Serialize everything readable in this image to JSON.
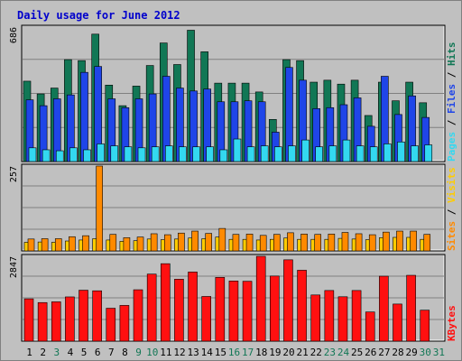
{
  "title": "Daily usage for June 2012",
  "colors": {
    "background": "#c0c0c0",
    "title": "#0000cc",
    "hits": "#117755",
    "files": "#1f45e8",
    "pages": "#33d8f0",
    "visits": "#ffcc00",
    "sites": "#ff8a00",
    "kbytes": "#ff1010"
  },
  "chart_data": [
    {
      "type": "bar",
      "title": "Daily usage for June 2012",
      "max_label": "686",
      "ylim": [
        0,
        686
      ],
      "grid": true,
      "legend": [
        "Pages",
        "Files",
        "Hits"
      ],
      "categories": [
        "1",
        "2",
        "3",
        "4",
        "5",
        "6",
        "7",
        "8",
        "9",
        "10",
        "11",
        "12",
        "13",
        "14",
        "15",
        "16",
        "17",
        "18",
        "19",
        "20",
        "21",
        "22",
        "23",
        "24",
        "25",
        "26",
        "27",
        "28",
        "29",
        "30",
        "31"
      ],
      "series": [
        {
          "name": "Hits",
          "values": [
            410,
            345,
            375,
            520,
            515,
            650,
            390,
            285,
            385,
            490,
            605,
            495,
            670,
            560,
            400,
            400,
            400,
            355,
            215,
            520,
            515,
            405,
            415,
            395,
            415,
            235,
            405,
            310,
            405,
            300,
            0
          ]
        },
        {
          "name": "Files",
          "values": [
            315,
            285,
            320,
            340,
            455,
            485,
            320,
            275,
            320,
            345,
            435,
            375,
            360,
            370,
            305,
            305,
            310,
            305,
            150,
            480,
            415,
            270,
            275,
            290,
            325,
            180,
            435,
            240,
            335,
            225,
            0
          ]
        },
        {
          "name": "Pages",
          "values": [
            70,
            60,
            55,
            70,
            60,
            90,
            80,
            75,
            70,
            75,
            80,
            75,
            75,
            75,
            60,
            115,
            75,
            80,
            75,
            80,
            110,
            75,
            80,
            110,
            80,
            75,
            90,
            100,
            80,
            85,
            0
          ]
        }
      ]
    },
    {
      "type": "bar",
      "max_label": "257",
      "ylim": [
        0,
        257
      ],
      "grid": true,
      "legend": [
        "Sites",
        "Visits"
      ],
      "categories": [
        "1",
        "2",
        "3",
        "4",
        "5",
        "6",
        "7",
        "8",
        "9",
        "10",
        "11",
        "12",
        "13",
        "14",
        "15",
        "16",
        "17",
        "18",
        "19",
        "20",
        "21",
        "22",
        "23",
        "24",
        "25",
        "26",
        "27",
        "28",
        "29",
        "30",
        "31"
      ],
      "series": [
        {
          "name": "Sites",
          "values": [
            36,
            37,
            37,
            43,
            46,
            257,
            50,
            40,
            42,
            52,
            49,
            54,
            60,
            53,
            68,
            50,
            51,
            47,
            50,
            55,
            51,
            50,
            51,
            56,
            52,
            49,
            57,
            60,
            60,
            50,
            0
          ]
        },
        {
          "name": "Visits",
          "values": [
            26,
            27,
            26,
            30,
            33,
            37,
            33,
            29,
            31,
            36,
            34,
            36,
            39,
            37,
            42,
            35,
            35,
            33,
            35,
            39,
            35,
            35,
            35,
            38,
            36,
            34,
            40,
            41,
            41,
            35,
            0
          ]
        }
      ]
    },
    {
      "type": "bar",
      "max_label": "2847",
      "ylim": [
        0,
        2847
      ],
      "grid": true,
      "legend": [
        "KBytes"
      ],
      "categories": [
        "1",
        "2",
        "3",
        "4",
        "5",
        "6",
        "7",
        "8",
        "9",
        "10",
        "11",
        "12",
        "13",
        "14",
        "15",
        "16",
        "17",
        "18",
        "19",
        "20",
        "21",
        "22",
        "23",
        "24",
        "25",
        "26",
        "27",
        "28",
        "29",
        "30",
        "31"
      ],
      "series": [
        {
          "name": "KBytes",
          "values": [
            1420,
            1295,
            1320,
            1485,
            1710,
            1690,
            1105,
            1200,
            1725,
            2250,
            2600,
            2080,
            2320,
            1500,
            2140,
            2020,
            2010,
            2847,
            2185,
            2730,
            2380,
            1550,
            1700,
            1490,
            1700,
            980,
            2180,
            1245,
            2210,
            1040,
            0
          ]
        }
      ]
    }
  ],
  "x_label_colors": [
    "#000000",
    "#000000",
    "#117755",
    "#000000",
    "#000000",
    "#000000",
    "#000000",
    "#000000",
    "#117755",
    "#117755",
    "#000000",
    "#000000",
    "#000000",
    "#000000",
    "#000000",
    "#117755",
    "#117755",
    "#000000",
    "#000000",
    "#000000",
    "#000000",
    "#000000",
    "#117755",
    "#117755",
    "#000000",
    "#000000",
    "#000000",
    "#000000",
    "#000000",
    "#117755",
    "#117755"
  ]
}
